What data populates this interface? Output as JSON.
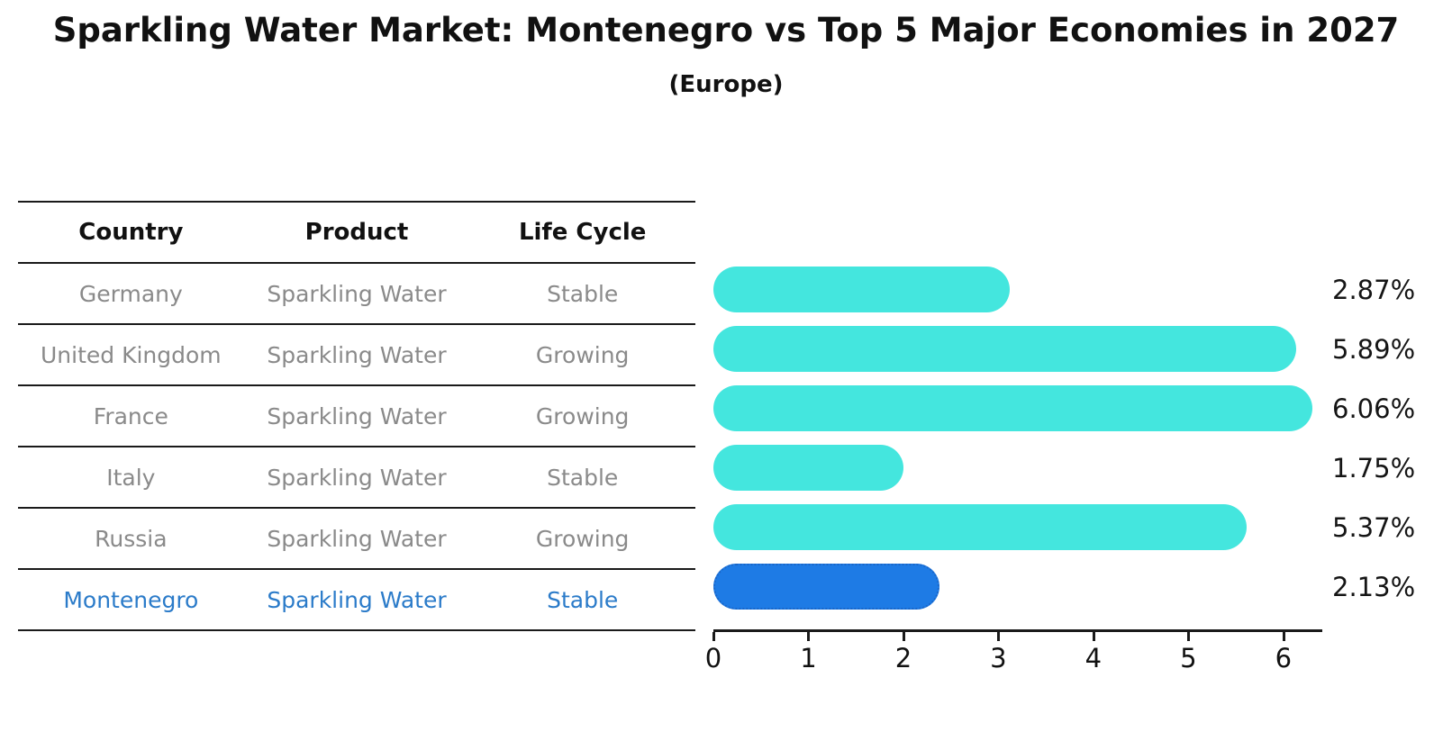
{
  "title": "Sparkling Water Market: Montenegro vs Top 5 Major Economies in 2027",
  "subtitle": "(Europe)",
  "table": {
    "headers": [
      "Country",
      "Product",
      "Life Cycle"
    ],
    "rows": [
      {
        "country": "Germany",
        "product": "Sparkling Water",
        "life_cycle": "Stable",
        "highlight": false
      },
      {
        "country": "United Kingdom",
        "product": "Sparkling Water",
        "life_cycle": "Growing",
        "highlight": false
      },
      {
        "country": "France",
        "product": "Sparkling Water",
        "life_cycle": "Growing",
        "highlight": false
      },
      {
        "country": "Italy",
        "product": "Sparkling Water",
        "life_cycle": "Stable",
        "highlight": false
      },
      {
        "country": "Russia",
        "product": "Sparkling Water",
        "life_cycle": "Growing",
        "highlight": false
      },
      {
        "country": "Montenegro",
        "product": "Sparkling Water",
        "life_cycle": "Stable",
        "highlight": true
      }
    ]
  },
  "chart_data": {
    "type": "bar",
    "orientation": "horizontal",
    "title": "Sparkling Water Market: Montenegro vs Top 5 Major Economies in 2027",
    "subtitle": "(Europe)",
    "categories": [
      "Germany",
      "United Kingdom",
      "France",
      "Italy",
      "Russia",
      "Montenegro"
    ],
    "values": [
      2.87,
      5.89,
      6.06,
      1.75,
      5.37,
      2.13
    ],
    "labels": [
      "2.87%",
      "5.89%",
      "6.06%",
      "1.75%",
      "5.37%",
      "2.13%"
    ],
    "unit": "percent",
    "x_ticks": [
      0,
      1,
      2,
      3,
      4,
      5,
      6
    ],
    "xlim": [
      0,
      6.4
    ],
    "grid": false,
    "legend": "none",
    "bar_color": "#44E6DE",
    "highlight_color": "#1E7BE5",
    "highlight_border_color": "#1a66c8",
    "highlight_index": 5,
    "highlight_text_color": "#2b7bc9"
  }
}
